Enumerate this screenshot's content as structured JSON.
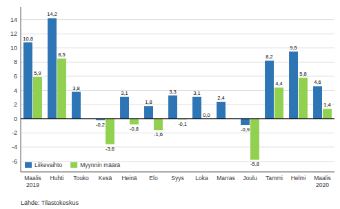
{
  "chart_data": {
    "type": "bar",
    "categories": [
      "Maalis\n2019",
      "Huhti",
      "Touko",
      "Kesä",
      "Heinä",
      "Elo",
      "Syys",
      "Loka",
      "Marras",
      "Joulu",
      "Tammi",
      "Helmi",
      "Maalis\n2020"
    ],
    "series": [
      {
        "name": "Liikevaihto",
        "color": "#2E75B6",
        "values": [
          10.8,
          14.2,
          3.8,
          -0.2,
          3.1,
          1.8,
          3.3,
          3.1,
          2.4,
          -0.9,
          8.2,
          9.5,
          4.6
        ],
        "value_labels": [
          "10,8",
          "14,2",
          "3,8",
          "-0,2",
          "3,1",
          "1,8",
          "3,3",
          "3,1",
          "2,4",
          "-0,9",
          "8,2",
          "9,5",
          "4,6"
        ]
      },
      {
        "name": "Myynnin määrä",
        "color": "#92D050",
        "values": [
          5.9,
          8.5,
          null,
          -3.6,
          -0.8,
          -1.6,
          -0.1,
          0.0,
          null,
          -5.8,
          4.4,
          5.8,
          1.4
        ],
        "value_labels": [
          "5,9",
          "8,5",
          null,
          "-3,6",
          "-0,8",
          "-1,6",
          "-0,1",
          "0,0",
          null,
          "-5,8",
          "4,4",
          "5,8",
          "1,4"
        ]
      }
    ],
    "ylim": [
      -7.5,
      15.8
    ],
    "yticks": [
      -6,
      -4,
      -2,
      0,
      2,
      4,
      6,
      8,
      10,
      12,
      14
    ],
    "grid": true,
    "legend": "lower left",
    "data_labels": true,
    "annotations": [
      "Lähde: Tilastokeskus"
    ]
  }
}
